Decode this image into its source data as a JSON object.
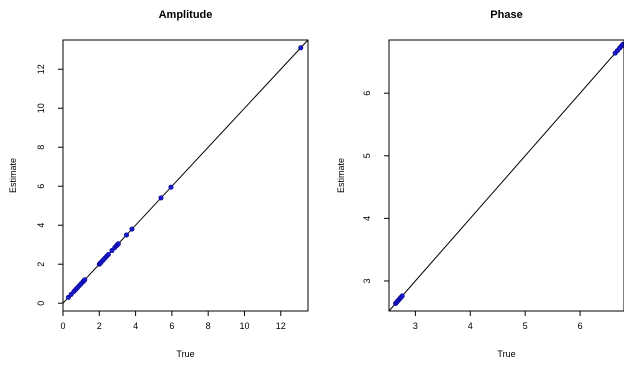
{
  "chart_data": [
    {
      "type": "scatter",
      "title": "Amplitude",
      "xlabel": "True",
      "ylabel": "Estimate",
      "xlim": [
        0,
        13.5
      ],
      "ylim": [
        -0.4,
        13.5
      ],
      "xticks": [
        0,
        2,
        4,
        6,
        8,
        10,
        12
      ],
      "yticks": [
        0,
        2,
        4,
        6,
        8,
        10,
        12
      ],
      "ytick_rotation": "vertical",
      "reference_line": "y = x",
      "point_color": "#1a1acc",
      "points": [
        [
          0.3,
          0.3
        ],
        [
          0.45,
          0.45
        ],
        [
          0.6,
          0.6
        ],
        [
          0.7,
          0.7
        ],
        [
          0.8,
          0.8
        ],
        [
          0.9,
          0.9
        ],
        [
          1.0,
          1.0
        ],
        [
          1.1,
          1.1
        ],
        [
          1.15,
          1.15
        ],
        [
          1.2,
          1.2
        ],
        [
          2.0,
          2.0
        ],
        [
          2.05,
          2.05
        ],
        [
          2.1,
          2.1
        ],
        [
          2.2,
          2.2
        ],
        [
          2.3,
          2.3
        ],
        [
          2.4,
          2.4
        ],
        [
          2.5,
          2.5
        ],
        [
          2.7,
          2.7
        ],
        [
          2.85,
          2.85
        ],
        [
          2.95,
          2.95
        ],
        [
          3.0,
          3.0
        ],
        [
          3.05,
          3.05
        ],
        [
          3.5,
          3.5
        ],
        [
          3.8,
          3.8
        ],
        [
          5.4,
          5.4
        ],
        [
          5.95,
          5.95
        ],
        [
          13.1,
          13.1
        ]
      ]
    },
    {
      "type": "scatter",
      "title": "Phase",
      "xlabel": "True",
      "ylabel": "Estimate",
      "xlim": [
        2.52,
        6.8
      ],
      "ylim": [
        2.52,
        6.85
      ],
      "xticks": [
        3,
        4,
        5,
        6
      ],
      "yticks": [
        3,
        4,
        5,
        6
      ],
      "ytick_rotation": "vertical",
      "reference_line": "y = x",
      "point_color": "#1a1acc",
      "points": [
        [
          2.64,
          2.64
        ],
        [
          2.66,
          2.66
        ],
        [
          2.68,
          2.68
        ],
        [
          2.7,
          2.7
        ],
        [
          2.72,
          2.72
        ],
        [
          2.74,
          2.74
        ],
        [
          2.76,
          2.76
        ],
        [
          6.64,
          6.64
        ],
        [
          6.68,
          6.68
        ],
        [
          6.72,
          6.72
        ],
        [
          6.75,
          6.75
        ],
        [
          6.78,
          6.78
        ]
      ]
    }
  ]
}
